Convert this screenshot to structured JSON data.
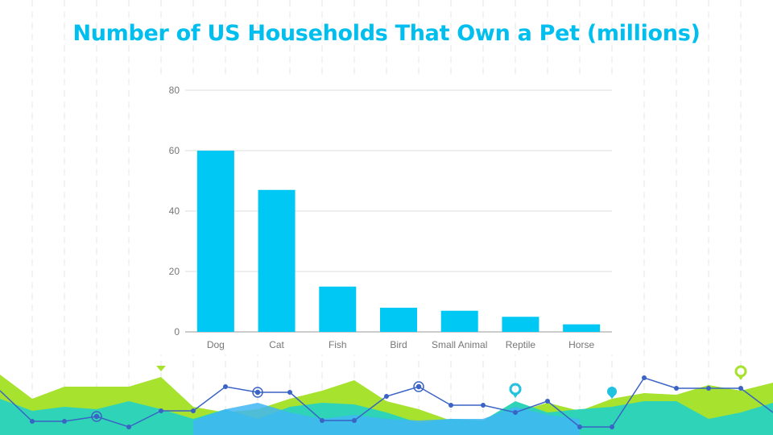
{
  "slide": {
    "title": "Number of US Households That Own a Pet (millions)"
  },
  "colors": {
    "title": "#00bfef",
    "bar": "#00c8f5",
    "grid": "#dddddd",
    "axis": "#999999",
    "wave_green": "#a6e22e",
    "wave_teal": "#2fd4b8",
    "wave_blue": "#3fb6f2",
    "line_blue": "#3a63c6"
  },
  "chart_data": {
    "type": "bar",
    "title": "",
    "xlabel": "",
    "ylabel": "",
    "categories": [
      "Dog",
      "Cat",
      "Fish",
      "Bird",
      "Small Animal",
      "Reptile",
      "Horse"
    ],
    "values": [
      60,
      47,
      15,
      8,
      7,
      5,
      2.5
    ],
    "yticks": [
      "0",
      "20",
      "40",
      "60",
      "80"
    ],
    "ylim": [
      0,
      80
    ],
    "grid": true,
    "legend": "none"
  },
  "decor": {
    "footer": "mountain-and-line-graph-footer",
    "icons": [
      "map-pin-icon",
      "map-marker-icon",
      "location-dot-icon"
    ]
  }
}
